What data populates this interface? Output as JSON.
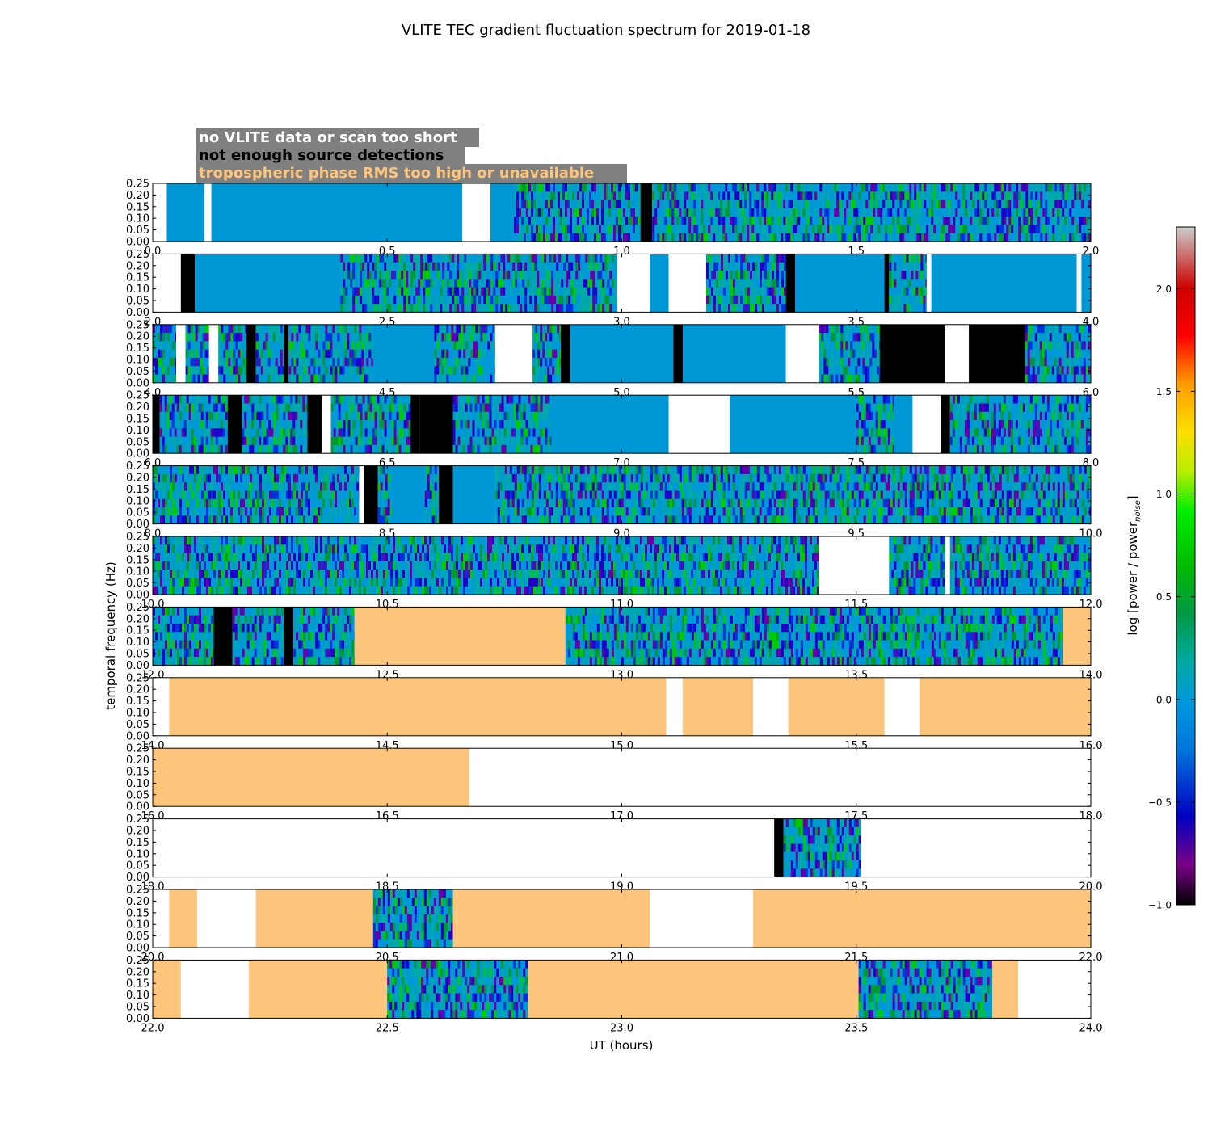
{
  "chart_data": {
    "type": "heatmap",
    "title": "VLITE TEC gradient fluctuation spectrum for 2019-01-18",
    "xlabel": "UT (hours)",
    "ylabel": "temporal frequency (Hz)",
    "ylim": [
      0,
      0.25
    ],
    "ytick_labels": [
      "0.00",
      "0.05",
      "0.10",
      "0.15",
      "0.20",
      "0.25"
    ],
    "hours_per_row": 2,
    "legend": [
      {
        "label": "no VLITE data or scan too short",
        "text_color": "#ffffff",
        "category": "white"
      },
      {
        "label": "not enough source detections",
        "text_color": "#000000",
        "category": "black"
      },
      {
        "label": "tropospheric phase RMS too high or unavailable",
        "text_color": "#fdc57c",
        "category": "orange"
      }
    ],
    "colorbar": {
      "label": "log [power / power",
      "label_subscript": "noise",
      "label_close": "]",
      "range": [
        -1.0,
        2.3
      ],
      "ticks": [
        "-1.0",
        "-0.5",
        "0.0",
        "0.5",
        "1.0",
        "1.5",
        "2.0"
      ],
      "colormap": "nipy_spectral"
    },
    "colors": {
      "white": "#ffffff",
      "black": "#000000",
      "orange": "#fdc57c",
      "flat": "#0097d6",
      "legend_box": "#808080"
    },
    "rows": [
      {
        "x_start": 0.0,
        "x_end": 2.0,
        "tick_labels": [
          "0.0",
          "0.5",
          "1.0",
          "1.5",
          "2.0"
        ],
        "segments": [
          [
            0,
            0.03,
            "white"
          ],
          [
            0.03,
            0.11,
            "flat"
          ],
          [
            0.11,
            0.125,
            "white"
          ],
          [
            0.125,
            0.66,
            "flat"
          ],
          [
            0.66,
            0.72,
            "white"
          ],
          [
            0.72,
            0.77,
            "flat"
          ],
          [
            0.77,
            1.04,
            "noisy"
          ],
          [
            1.04,
            1.065,
            "black"
          ],
          [
            1.065,
            2.0,
            "noisy"
          ]
        ]
      },
      {
        "x_start": 2.0,
        "x_end": 4.0,
        "tick_labels": [
          "2.0",
          "2.5",
          "3.0",
          "3.5",
          "4.0"
        ],
        "segments": [
          [
            2,
            2.06,
            "white"
          ],
          [
            2.06,
            2.09,
            "black"
          ],
          [
            2.09,
            2.4,
            "flat"
          ],
          [
            2.4,
            2.99,
            "noisy"
          ],
          [
            2.99,
            3.06,
            "white"
          ],
          [
            3.06,
            3.1,
            "flat"
          ],
          [
            3.1,
            3.18,
            "white"
          ],
          [
            3.18,
            3.35,
            "noisy"
          ],
          [
            3.35,
            3.37,
            "black"
          ],
          [
            3.37,
            3.56,
            "flat"
          ],
          [
            3.56,
            3.57,
            "black"
          ],
          [
            3.57,
            3.65,
            "noisy"
          ],
          [
            3.65,
            3.66,
            "white"
          ],
          [
            3.66,
            3.97,
            "flat"
          ],
          [
            3.97,
            3.98,
            "white"
          ],
          [
            3.98,
            4.0,
            "flat"
          ]
        ]
      },
      {
        "x_start": 4.0,
        "x_end": 6.0,
        "tick_labels": [
          "4.0",
          "4.5",
          "5.0",
          "5.5",
          "6.0"
        ],
        "segments": [
          [
            4,
            4.05,
            "noisy"
          ],
          [
            4.05,
            4.07,
            "white"
          ],
          [
            4.07,
            4.12,
            "noisy"
          ],
          [
            4.12,
            4.14,
            "white"
          ],
          [
            4.14,
            4.2,
            "noisy"
          ],
          [
            4.2,
            4.22,
            "black"
          ],
          [
            4.22,
            4.28,
            "noisy"
          ],
          [
            4.28,
            4.29,
            "black"
          ],
          [
            4.29,
            4.47,
            "noisy"
          ],
          [
            4.47,
            4.6,
            "flat"
          ],
          [
            4.6,
            4.73,
            "noisy"
          ],
          [
            4.73,
            4.81,
            "white"
          ],
          [
            4.81,
            4.87,
            "noisy"
          ],
          [
            4.87,
            4.89,
            "black"
          ],
          [
            4.89,
            5.11,
            "flat"
          ],
          [
            5.11,
            5.13,
            "black"
          ],
          [
            5.13,
            5.35,
            "flat"
          ],
          [
            5.35,
            5.42,
            "white"
          ],
          [
            5.42,
            5.55,
            "noisy"
          ],
          [
            5.55,
            5.69,
            "black"
          ],
          [
            5.69,
            5.74,
            "white"
          ],
          [
            5.74,
            5.86,
            "black"
          ],
          [
            5.86,
            6.0,
            "noisy"
          ]
        ]
      },
      {
        "x_start": 6.0,
        "x_end": 8.0,
        "tick_labels": [
          "6.0",
          "6.5",
          "7.0",
          "7.5",
          "8.0"
        ],
        "segments": [
          [
            6,
            6.015,
            "black"
          ],
          [
            6.015,
            6.16,
            "noisy"
          ],
          [
            6.16,
            6.19,
            "black"
          ],
          [
            6.19,
            6.33,
            "noisy"
          ],
          [
            6.33,
            6.36,
            "black"
          ],
          [
            6.36,
            6.38,
            "white"
          ],
          [
            6.38,
            6.55,
            "noisy"
          ],
          [
            6.55,
            6.57,
            "black"
          ],
          [
            6.57,
            6.64,
            "black"
          ],
          [
            6.64,
            6.85,
            "noisy"
          ],
          [
            6.85,
            7.1,
            "flat"
          ],
          [
            7.1,
            7.23,
            "white"
          ],
          [
            7.23,
            7.5,
            "flat"
          ],
          [
            7.5,
            7.58,
            "noisy"
          ],
          [
            7.58,
            7.62,
            "flat"
          ],
          [
            7.62,
            7.68,
            "white"
          ],
          [
            7.68,
            7.7,
            "black"
          ],
          [
            7.7,
            8.0,
            "noisy"
          ]
        ]
      },
      {
        "x_start": 8.0,
        "x_end": 10.0,
        "tick_labels": [
          "8.0",
          "8.5",
          "9.0",
          "9.5",
          "10.0"
        ],
        "segments": [
          [
            8,
            8.44,
            "noisy"
          ],
          [
            8.44,
            8.45,
            "white"
          ],
          [
            8.45,
            8.48,
            "black"
          ],
          [
            8.48,
            8.51,
            "noisy"
          ],
          [
            8.51,
            8.58,
            "flat"
          ],
          [
            8.58,
            8.61,
            "noisy"
          ],
          [
            8.61,
            8.64,
            "black"
          ],
          [
            8.64,
            8.73,
            "flat"
          ],
          [
            8.73,
            10.0,
            "noisy"
          ]
        ]
      },
      {
        "x_start": 10.0,
        "x_end": 12.0,
        "tick_labels": [
          "10.0",
          "10.5",
          "11.0",
          "11.5",
          "12.0"
        ],
        "segments": [
          [
            10,
            11.42,
            "noisy"
          ],
          [
            11.42,
            11.57,
            "white"
          ],
          [
            11.57,
            11.69,
            "noisy"
          ],
          [
            11.69,
            11.7,
            "white"
          ],
          [
            11.7,
            12.0,
            "noisy"
          ]
        ]
      },
      {
        "x_start": 12.0,
        "x_end": 14.0,
        "tick_labels": [
          "12.0",
          "12.5",
          "13.0",
          "13.5",
          "14.0"
        ],
        "segments": [
          [
            12,
            12.13,
            "noisy"
          ],
          [
            12.13,
            12.17,
            "black"
          ],
          [
            12.17,
            12.28,
            "noisy"
          ],
          [
            12.28,
            12.3,
            "black"
          ],
          [
            12.3,
            12.43,
            "noisy"
          ],
          [
            12.43,
            12.88,
            "orange"
          ],
          [
            12.88,
            13.94,
            "noisy"
          ],
          [
            13.94,
            14.0,
            "orange"
          ]
        ]
      },
      {
        "x_start": 14.0,
        "x_end": 16.0,
        "tick_labels": [
          "14.0",
          "14.5",
          "15.0",
          "15.5",
          "16.0"
        ],
        "segments": [
          [
            14,
            14.035,
            "white"
          ],
          [
            14.035,
            15.095,
            "orange"
          ],
          [
            15.095,
            15.13,
            "white"
          ],
          [
            15.13,
            15.28,
            "orange"
          ],
          [
            15.28,
            15.355,
            "white"
          ],
          [
            15.355,
            15.56,
            "orange"
          ],
          [
            15.56,
            15.635,
            "white"
          ],
          [
            15.635,
            16.0,
            "orange"
          ]
        ]
      },
      {
        "x_start": 16.0,
        "x_end": 18.0,
        "tick_labels": [
          "16.0",
          "16.5",
          "17.0",
          "17.5",
          "18.0"
        ],
        "segments": [
          [
            16,
            16.675,
            "orange"
          ],
          [
            16.675,
            18.0,
            "white"
          ]
        ]
      },
      {
        "x_start": 18.0,
        "x_end": 20.0,
        "tick_labels": [
          "18.0",
          "18.5",
          "19.0",
          "19.5",
          "20.0"
        ],
        "segments": [
          [
            18,
            19.325,
            "white"
          ],
          [
            19.325,
            19.345,
            "black"
          ],
          [
            19.345,
            19.51,
            "noisy"
          ],
          [
            19.51,
            20.0,
            "white"
          ]
        ]
      },
      {
        "x_start": 20.0,
        "x_end": 22.0,
        "tick_labels": [
          "20.0",
          "20.5",
          "21.0",
          "21.5",
          "22.0"
        ],
        "segments": [
          [
            20,
            20.035,
            "white"
          ],
          [
            20.035,
            20.095,
            "orange"
          ],
          [
            20.095,
            20.22,
            "white"
          ],
          [
            20.22,
            20.47,
            "orange"
          ],
          [
            20.47,
            20.64,
            "noisy"
          ],
          [
            20.64,
            21.06,
            "orange"
          ],
          [
            21.06,
            21.28,
            "white"
          ],
          [
            21.28,
            22.0,
            "orange"
          ]
        ]
      },
      {
        "x_start": 22.0,
        "x_end": 24.0,
        "tick_labels": [
          "22.0",
          "22.5",
          "23.0",
          "23.5",
          "24.0"
        ],
        "segments": [
          [
            22,
            22.06,
            "orange"
          ],
          [
            22.06,
            22.205,
            "white"
          ],
          [
            22.205,
            22.5,
            "orange"
          ],
          [
            22.5,
            22.8,
            "noisy"
          ],
          [
            22.8,
            23.505,
            "orange"
          ],
          [
            23.505,
            23.79,
            "noisy"
          ],
          [
            23.79,
            23.845,
            "orange"
          ],
          [
            23.845,
            24.0,
            "white"
          ]
        ]
      }
    ]
  }
}
